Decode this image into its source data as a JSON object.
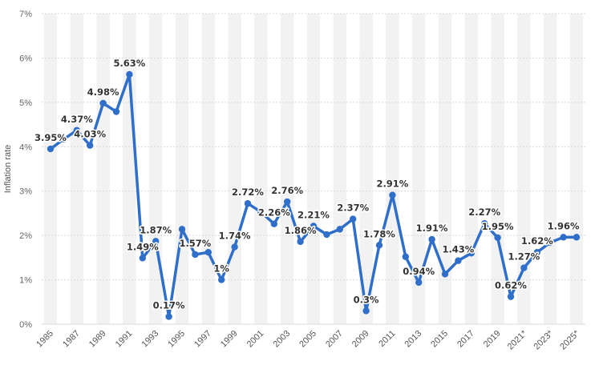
{
  "chart_data": {
    "type": "line",
    "title": "",
    "xlabel": "",
    "ylabel": "Inflation rate",
    "ylim": [
      0,
      7
    ],
    "yticks": [
      "0%",
      "1%",
      "2%",
      "3%",
      "4%",
      "5%",
      "6%",
      "7%"
    ],
    "grid": true,
    "color": "#2f6fca",
    "band_color": "#f2f2f2",
    "x": [
      1985,
      1986,
      1987,
      1988,
      1989,
      1990,
      1991,
      1992,
      1993,
      1994,
      1995,
      1996,
      1997,
      1998,
      1999,
      2000,
      2001,
      2002,
      2003,
      2004,
      2005,
      2006,
      2007,
      2008,
      2009,
      2010,
      2011,
      2012,
      2013,
      2014,
      2015,
      2016,
      2017,
      2018,
      2019,
      2020,
      2021,
      2022,
      2023,
      2024,
      2025
    ],
    "xtick_labels": [
      "1985",
      "1987",
      "1989",
      "1991",
      "1993",
      "1995",
      "1997",
      "1999",
      "2001",
      "2003",
      "2005",
      "2007",
      "2009",
      "2011",
      "2013",
      "2015",
      "2017",
      "2019",
      "2021*",
      "2023*",
      "2025*"
    ],
    "series": [
      {
        "name": "Inflation rate",
        "values": [
          3.95,
          4.17,
          4.37,
          4.03,
          4.98,
          4.79,
          5.63,
          1.49,
          1.87,
          0.17,
          2.14,
          1.57,
          1.62,
          1.0,
          1.74,
          2.72,
          2.53,
          2.26,
          2.76,
          1.86,
          2.21,
          2.02,
          2.14,
          2.37,
          0.3,
          1.78,
          2.91,
          1.52,
          0.94,
          1.91,
          1.13,
          1.43,
          1.6,
          2.27,
          1.95,
          0.62,
          1.27,
          1.62,
          1.84,
          1.96,
          1.96
        ],
        "labels": [
          "3.95%",
          "",
          "4.37%",
          "4.03%",
          "4.98%",
          "",
          "5.63%",
          "1.49%",
          "1.87%",
          "0.17%",
          "",
          "1.57%",
          "",
          "1%",
          "1.74%",
          "2.72%",
          "",
          "2.26%",
          "2.76%",
          "1.86%",
          "2.21%",
          "",
          "",
          "2.37%",
          "0.3%",
          "1.78%",
          "2.91%",
          "",
          "0.94%",
          "1.91%",
          "",
          "1.43%",
          "",
          "2.27%",
          "1.95%",
          "0.62%",
          "1.27%",
          "1.62%",
          "",
          "1.96%",
          ""
        ]
      }
    ]
  }
}
